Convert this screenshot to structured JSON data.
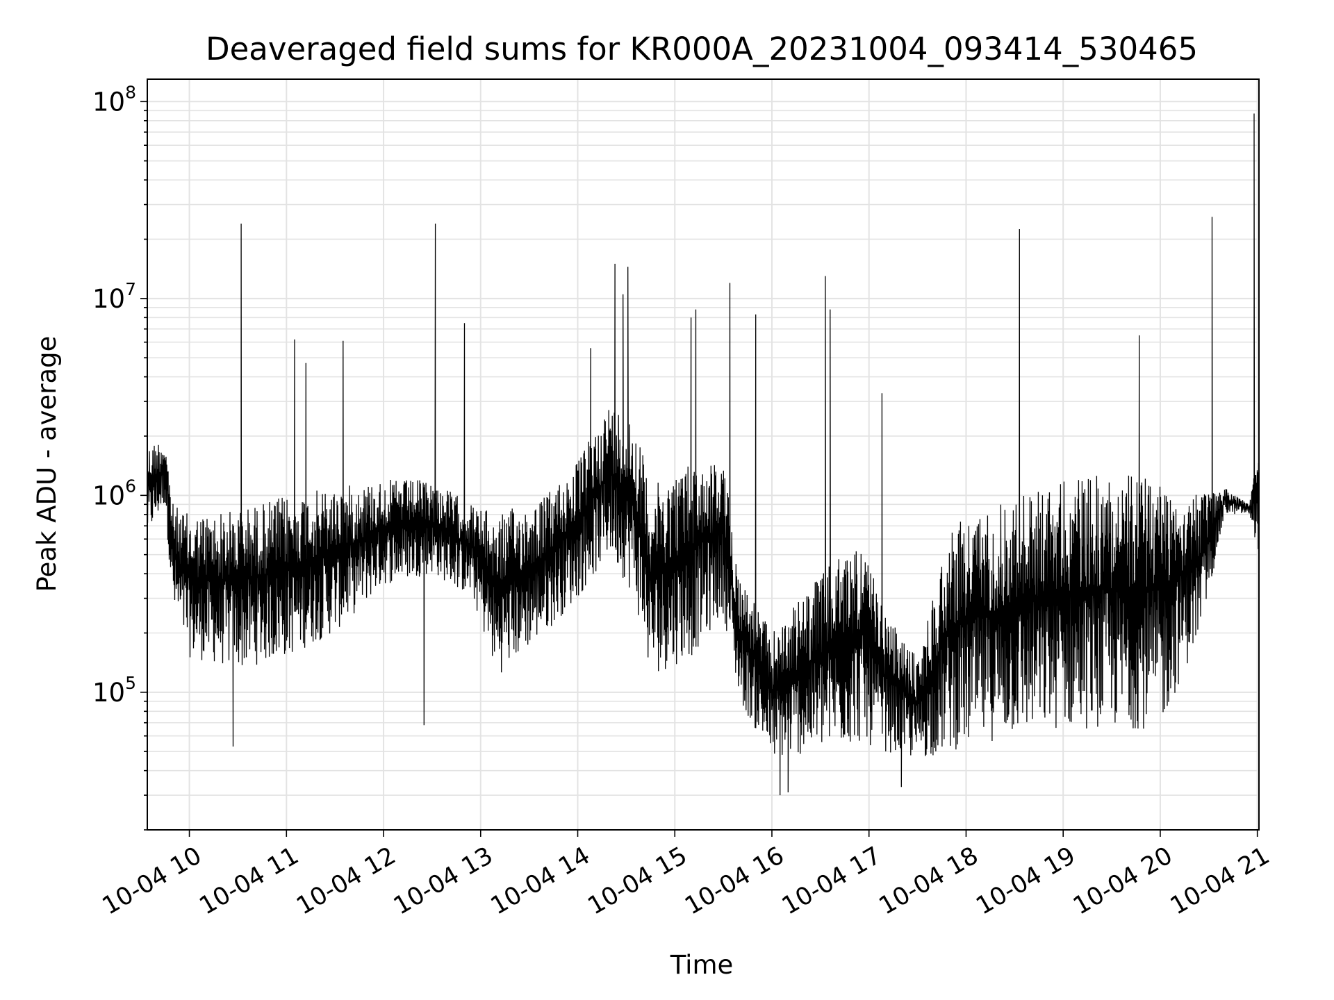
{
  "chart_data": {
    "type": "line",
    "title": "Deaveraged field sums for KR000A_20231004_093414_530465",
    "xlabel": "Time",
    "ylabel": "Peak ADU - average",
    "yscale": "log",
    "grid": true,
    "line_color": "#000000",
    "grid_color": "#e3e3e3",
    "xlim": [
      "2023-10-04 09:34",
      "2023-10-04 21:01"
    ],
    "ylim": [
      20000,
      130000000
    ],
    "x_ticks": [
      {
        "value": "2023-10-04 10:00",
        "label": "10-04 10"
      },
      {
        "value": "2023-10-04 11:00",
        "label": "10-04 11"
      },
      {
        "value": "2023-10-04 12:00",
        "label": "10-04 12"
      },
      {
        "value": "2023-10-04 13:00",
        "label": "10-04 13"
      },
      {
        "value": "2023-10-04 14:00",
        "label": "10-04 14"
      },
      {
        "value": "2023-10-04 15:00",
        "label": "10-04 15"
      },
      {
        "value": "2023-10-04 16:00",
        "label": "10-04 16"
      },
      {
        "value": "2023-10-04 17:00",
        "label": "10-04 17"
      },
      {
        "value": "2023-10-04 18:00",
        "label": "10-04 18"
      },
      {
        "value": "2023-10-04 19:00",
        "label": "10-04 19"
      },
      {
        "value": "2023-10-04 20:00",
        "label": "10-04 20"
      },
      {
        "value": "2023-10-04 21:00",
        "label": "10-04 21"
      }
    ],
    "y_ticks": [
      {
        "value": 100000,
        "base": "10",
        "exp": "5"
      },
      {
        "value": 1000000,
        "base": "10",
        "exp": "6"
      },
      {
        "value": 10000000,
        "base": "10",
        "exp": "7"
      },
      {
        "value": 100000000,
        "base": "10",
        "exp": "8"
      }
    ],
    "series": [
      {
        "envelope": [
          {
            "x": "2023-10-04 09:34",
            "low": 600000,
            "high": 1800000
          },
          {
            "x": "2023-10-04 09:45",
            "low": 900000,
            "high": 2000000
          },
          {
            "x": "2023-10-04 09:50",
            "low": 250000,
            "high": 900000
          },
          {
            "x": "2023-10-04 10:00",
            "low": 150000,
            "high": 800000
          },
          {
            "x": "2023-10-04 10:30",
            "low": 130000,
            "high": 850000
          },
          {
            "x": "2023-10-04 11:00",
            "low": 150000,
            "high": 1000000
          },
          {
            "x": "2023-10-04 11:30",
            "low": 200000,
            "high": 1100000
          },
          {
            "x": "2023-10-04 12:00",
            "low": 350000,
            "high": 1200000
          },
          {
            "x": "2023-10-04 12:30",
            "low": 400000,
            "high": 1200000
          },
          {
            "x": "2023-10-04 12:55",
            "low": 300000,
            "high": 900000
          },
          {
            "x": "2023-10-04 13:10",
            "low": 120000,
            "high": 800000
          },
          {
            "x": "2023-10-04 13:40",
            "low": 200000,
            "high": 1000000
          },
          {
            "x": "2023-10-04 14:00",
            "low": 300000,
            "high": 1500000
          },
          {
            "x": "2023-10-04 14:20",
            "low": 500000,
            "high": 3000000
          },
          {
            "x": "2023-10-04 14:35",
            "low": 300000,
            "high": 2500000
          },
          {
            "x": "2023-10-04 14:45",
            "low": 120000,
            "high": 1100000
          },
          {
            "x": "2023-10-04 15:10",
            "low": 150000,
            "high": 1500000
          },
          {
            "x": "2023-10-04 15:30",
            "low": 250000,
            "high": 1500000
          },
          {
            "x": "2023-10-04 15:40",
            "low": 90000,
            "high": 400000
          },
          {
            "x": "2023-10-04 16:00",
            "low": 45000,
            "high": 200000
          },
          {
            "x": "2023-10-04 16:30",
            "low": 50000,
            "high": 400000
          },
          {
            "x": "2023-10-04 16:55",
            "low": 55000,
            "high": 600000
          },
          {
            "x": "2023-10-04 17:10",
            "low": 50000,
            "high": 250000
          },
          {
            "x": "2023-10-04 17:30",
            "low": 45000,
            "high": 150000
          },
          {
            "x": "2023-10-04 17:50",
            "low": 50000,
            "high": 700000
          },
          {
            "x": "2023-10-04 18:30",
            "low": 60000,
            "high": 1000000
          },
          {
            "x": "2023-10-04 19:00",
            "low": 65000,
            "high": 1200000
          },
          {
            "x": "2023-10-04 19:30",
            "low": 65000,
            "high": 1300000
          },
          {
            "x": "2023-10-04 20:00",
            "low": 65000,
            "high": 1250000
          },
          {
            "x": "2023-10-04 20:25",
            "low": 200000,
            "high": 1000000
          },
          {
            "x": "2023-10-04 20:40",
            "low": 800000,
            "high": 1100000
          },
          {
            "x": "2023-10-04 20:55",
            "low": 800000,
            "high": 900000
          },
          {
            "x": "2023-10-04 21:01",
            "low": 500000,
            "high": 1800000
          }
        ],
        "peaks": [
          {
            "x": "2023-10-04 10:32",
            "y": 24000000
          },
          {
            "x": "2023-10-04 11:05",
            "y": 6200000
          },
          {
            "x": "2023-10-04 11:12",
            "y": 4700000
          },
          {
            "x": "2023-10-04 11:35",
            "y": 6100000
          },
          {
            "x": "2023-10-04 12:32",
            "y": 24000000
          },
          {
            "x": "2023-10-04 12:50",
            "y": 7500000
          },
          {
            "x": "2023-10-04 14:08",
            "y": 5600000
          },
          {
            "x": "2023-10-04 14:23",
            "y": 15000000
          },
          {
            "x": "2023-10-04 14:28",
            "y": 10500000
          },
          {
            "x": "2023-10-04 14:31",
            "y": 14500000
          },
          {
            "x": "2023-10-04 15:10",
            "y": 8000000
          },
          {
            "x": "2023-10-04 15:13",
            "y": 8800000
          },
          {
            "x": "2023-10-04 15:34",
            "y": 12000000
          },
          {
            "x": "2023-10-04 15:50",
            "y": 8300000
          },
          {
            "x": "2023-10-04 16:33",
            "y": 13000000
          },
          {
            "x": "2023-10-04 16:36",
            "y": 8800000
          },
          {
            "x": "2023-10-04 17:08",
            "y": 3300000
          },
          {
            "x": "2023-10-04 18:33",
            "y": 22500000
          },
          {
            "x": "2023-10-04 19:47",
            "y": 6500000
          },
          {
            "x": "2023-10-04 20:32",
            "y": 26000000
          },
          {
            "x": "2023-10-04 20:58",
            "y": 87000000
          }
        ],
        "dips": [
          {
            "x": "2023-10-04 10:27",
            "y": 53000
          },
          {
            "x": "2023-10-04 12:25",
            "y": 68000
          },
          {
            "x": "2023-10-04 16:05",
            "y": 30000
          },
          {
            "x": "2023-10-04 16:10",
            "y": 31000
          },
          {
            "x": "2023-10-04 17:20",
            "y": 33000
          }
        ]
      }
    ]
  }
}
